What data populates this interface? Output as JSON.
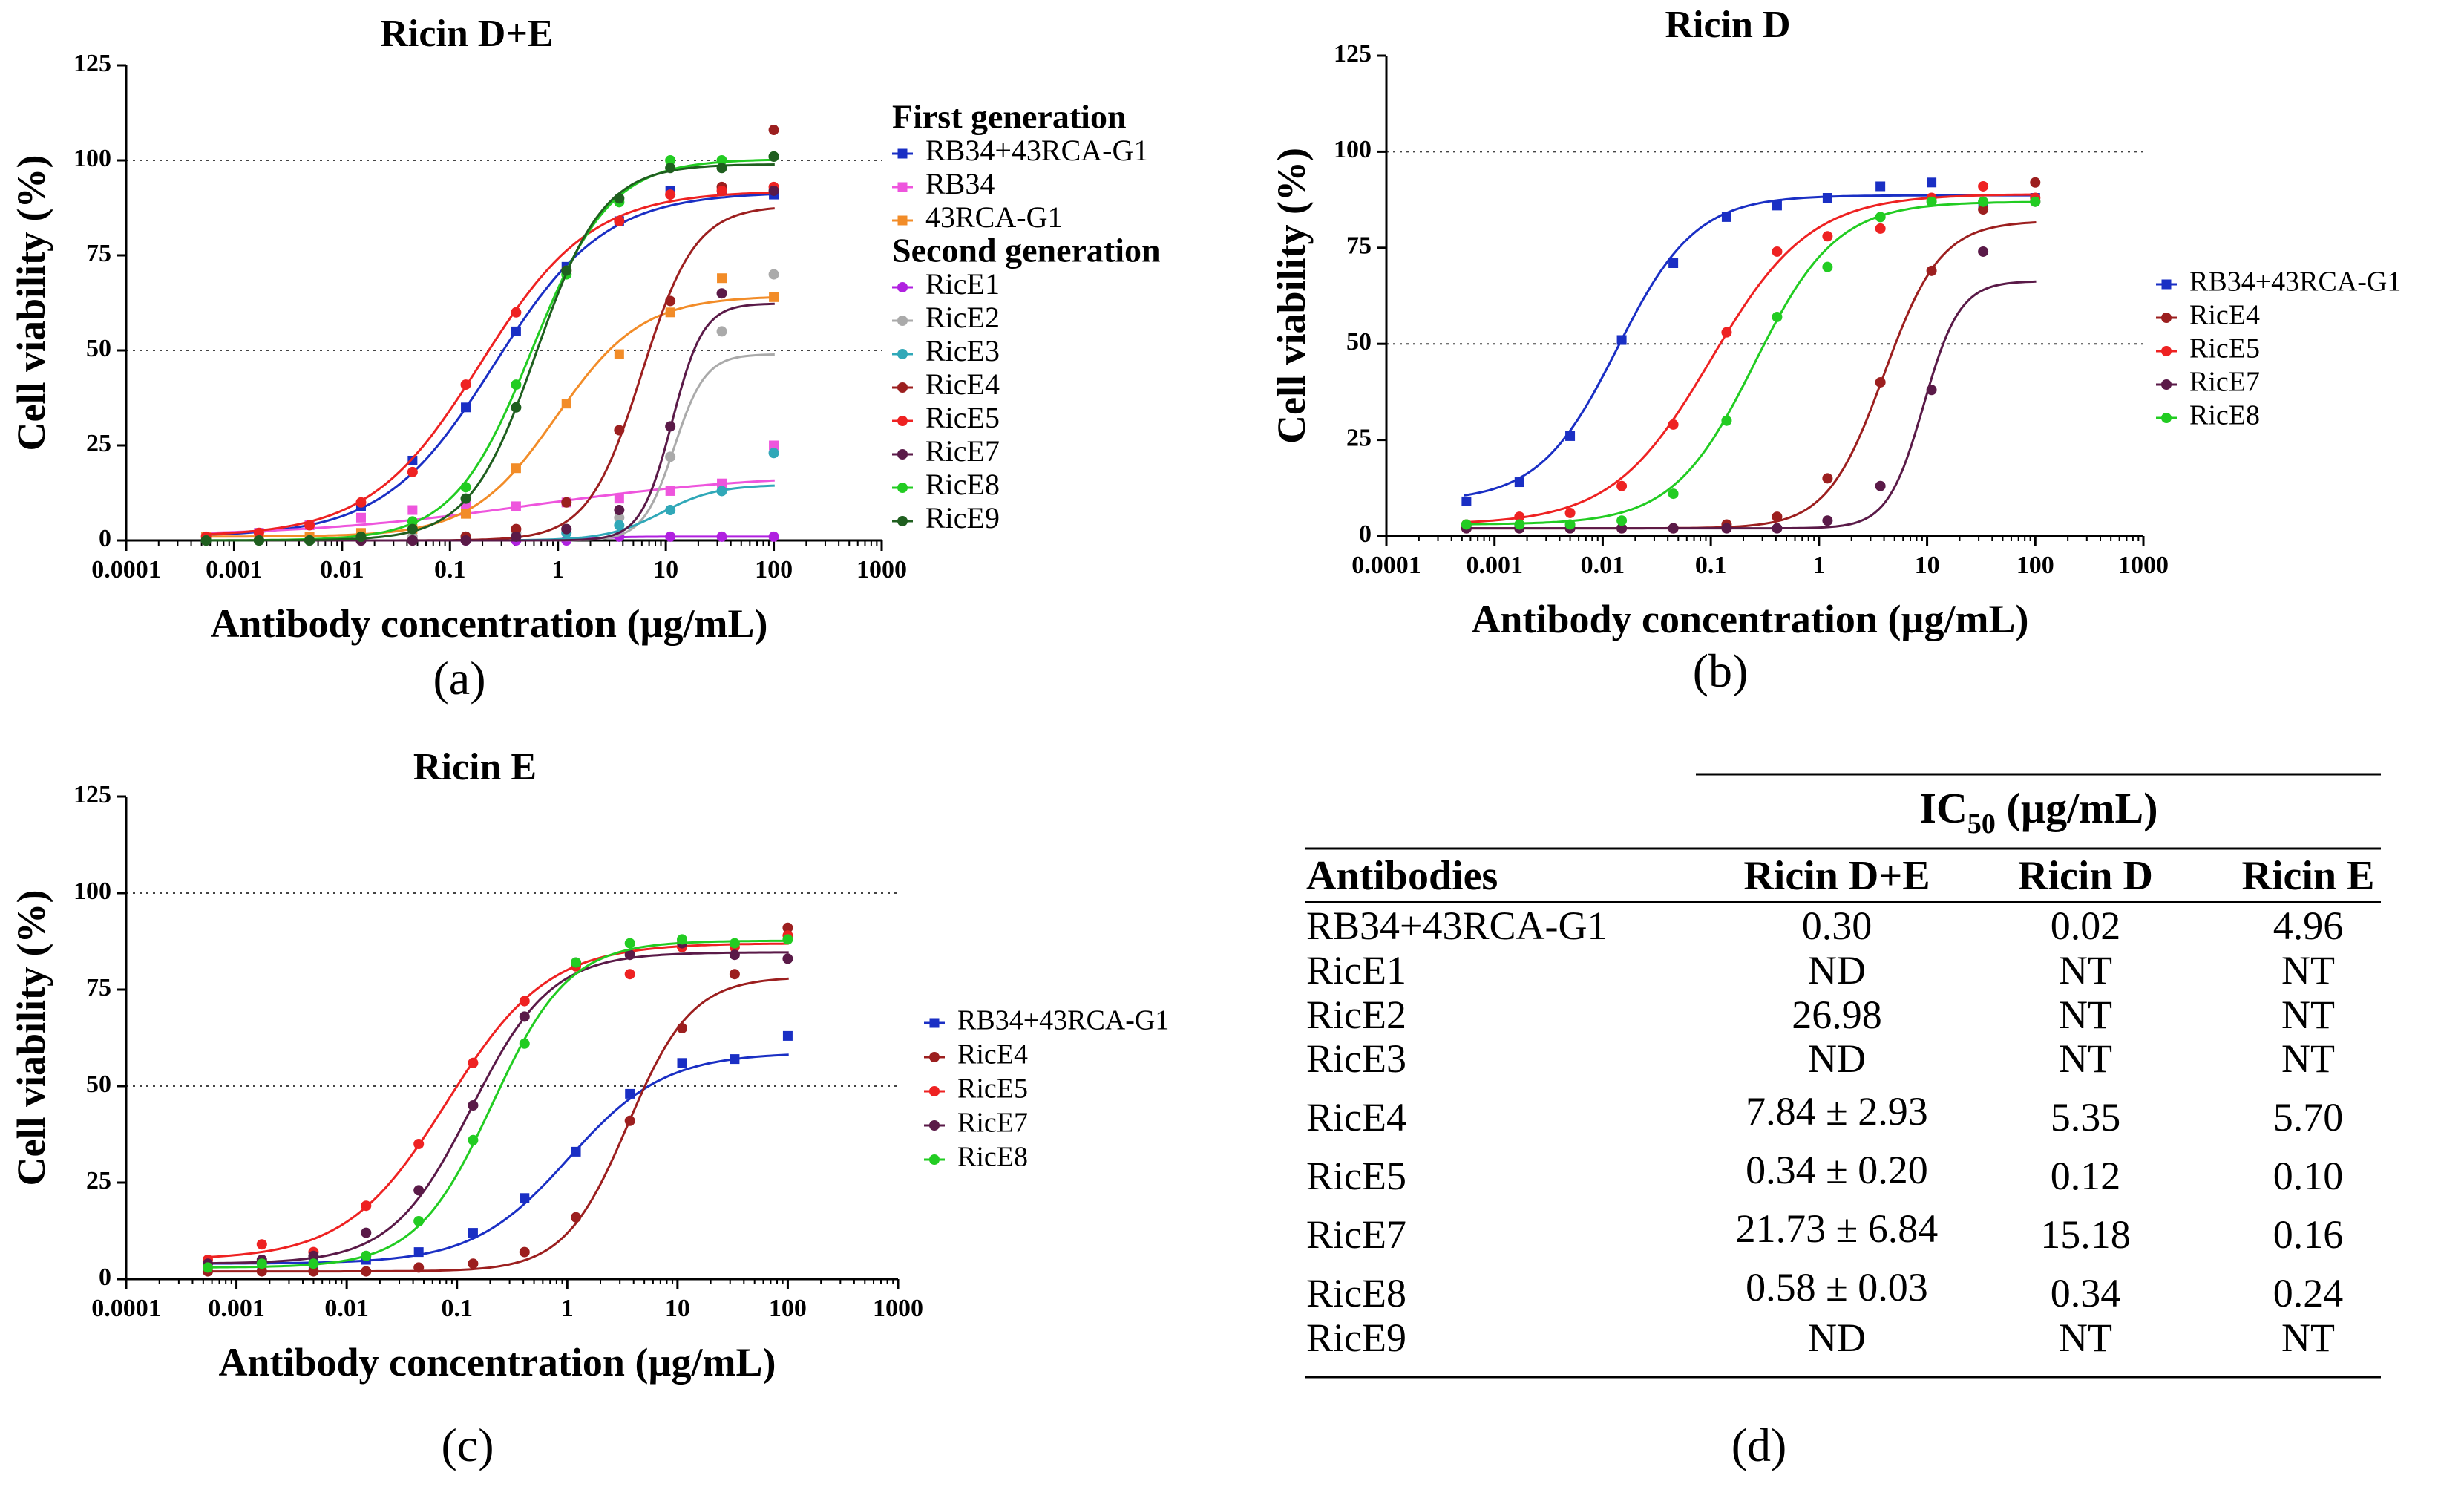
{
  "colors": {
    "RB34+43RCA-G1": "#1a2fc4",
    "RB34": "#ee55dd",
    "43RCA-G1": "#f28c28",
    "RicE1": "#b020e0",
    "RicE2": "#aaaaaa",
    "RicE3": "#30a8b8",
    "RicE4": "#9c1f1f",
    "RicE5": "#ee2222",
    "RicE7": "#5a1a48",
    "RicE8": "#22cc22",
    "RicE9": "#1f5f1f"
  },
  "chart_data": [
    {
      "type": "line",
      "panel_label": "(a)",
      "title": "Ricin D+E",
      "xlabel": "Antibody concentration (µg/mL)",
      "ylabel": "Cell viability (%)",
      "xscale": "log",
      "xlim": [
        0.0001,
        1000
      ],
      "ylim": [
        0,
        125
      ],
      "x_ticks": [
        "0.0001",
        "0.001",
        "0.01",
        "0.1",
        "1",
        "10",
        "100",
        "1000"
      ],
      "y_ticks": [
        "0",
        "25",
        "50",
        "75",
        "100",
        "125"
      ],
      "reference_lines": [
        50,
        100
      ],
      "legend_position": "right",
      "legend": [
        {
          "heading": "First generation"
        },
        {
          "name": "RB34+43RCA-G1"
        },
        {
          "name": "RB34"
        },
        {
          "name": "43RCA-G1"
        },
        {
          "heading": "Second generation"
        },
        {
          "name": "RicE1"
        },
        {
          "name": "RicE2"
        },
        {
          "name": "RicE3"
        },
        {
          "name": "RicE4"
        },
        {
          "name": "RicE5"
        },
        {
          "name": "RicE7"
        },
        {
          "name": "RicE8"
        },
        {
          "name": "RicE9"
        }
      ],
      "x": [
        0.00055,
        0.0017,
        0.005,
        0.015,
        0.045,
        0.14,
        0.41,
        1.2,
        3.7,
        11,
        33,
        100
      ],
      "series": [
        {
          "name": "RB34+43RCA-G1",
          "marker": "square",
          "values": [
            1,
            2,
            4,
            9,
            21,
            35,
            55,
            72,
            84,
            92,
            92,
            91
          ]
        },
        {
          "name": "RB34",
          "marker": "square",
          "values": [
            1,
            2,
            4,
            6,
            8,
            9,
            9,
            10,
            11,
            13,
            15,
            25
          ]
        },
        {
          "name": "43RCA-G1",
          "marker": "square",
          "values": [
            1,
            1,
            1,
            2,
            3,
            7,
            19,
            36,
            49,
            60,
            69,
            64
          ]
        },
        {
          "name": "RicE1",
          "marker": "circle",
          "values": [
            0,
            0,
            0,
            0,
            0,
            0,
            0,
            0,
            1,
            1,
            1,
            1
          ]
        },
        {
          "name": "RicE2",
          "marker": "circle",
          "values": [
            0,
            0,
            0,
            0,
            1,
            1,
            2,
            3,
            6,
            22,
            55,
            70
          ]
        },
        {
          "name": "RicE3",
          "marker": "circle",
          "values": [
            0,
            0,
            0,
            0,
            0,
            1,
            1,
            2,
            4,
            8,
            13,
            23
          ]
        },
        {
          "name": "RicE4",
          "marker": "circle",
          "values": [
            0,
            0,
            0,
            0,
            0,
            1,
            3,
            10,
            29,
            63,
            93,
            108
          ]
        },
        {
          "name": "RicE5",
          "marker": "circle",
          "values": [
            1,
            2,
            4,
            10,
            18,
            41,
            60,
            71,
            84,
            91,
            92,
            93
          ]
        },
        {
          "name": "RicE7",
          "marker": "circle",
          "values": [
            0,
            0,
            0,
            0,
            0,
            0,
            1,
            3,
            8,
            30,
            65,
            92
          ]
        },
        {
          "name": "RicE8",
          "marker": "circle",
          "values": [
            0,
            0,
            0,
            1,
            5,
            14,
            41,
            70,
            89,
            100,
            100,
            101
          ]
        },
        {
          "name": "RicE9",
          "marker": "circle",
          "values": [
            0,
            0,
            0,
            1,
            3,
            11,
            35,
            71,
            90,
            98,
            98,
            101
          ]
        }
      ]
    },
    {
      "type": "line",
      "panel_label": "(b)",
      "title": "Ricin D",
      "xlabel": "Antibody concentration (µg/mL)",
      "ylabel": "Cell viability (%)",
      "xscale": "log",
      "xlim": [
        0.0001,
        1000
      ],
      "ylim": [
        0,
        125
      ],
      "x_ticks": [
        "0.0001",
        "0.001",
        "0.01",
        "0.1",
        "1",
        "10",
        "100",
        "1000"
      ],
      "y_ticks": [
        "0",
        "25",
        "50",
        "75",
        "100",
        "125"
      ],
      "reference_lines": [
        50,
        100
      ],
      "legend_position": "right",
      "legend": [
        {
          "name": "RB34+43RCA-G1"
        },
        {
          "name": "RicE4"
        },
        {
          "name": "RicE5"
        },
        {
          "name": "RicE7"
        },
        {
          "name": "RicE8"
        }
      ],
      "x": [
        0.00055,
        0.0017,
        0.005,
        0.015,
        0.045,
        0.14,
        0.41,
        1.2,
        3.7,
        11,
        33,
        100
      ],
      "series": [
        {
          "name": "RB34+43RCA-G1",
          "marker": "square",
          "values": [
            9,
            14,
            26,
            51,
            71,
            83,
            86,
            88,
            91,
            92,
            86,
            88
          ]
        },
        {
          "name": "RicE4",
          "marker": "circle",
          "values": [
            2,
            2,
            2,
            2,
            2,
            3,
            5,
            15,
            40,
            69,
            85,
            92
          ]
        },
        {
          "name": "RicE5",
          "marker": "circle",
          "values": [
            3,
            5,
            6,
            13,
            29,
            53,
            74,
            78,
            80,
            88,
            91,
            88
          ]
        },
        {
          "name": "RicE7",
          "marker": "circle",
          "values": [
            2,
            2,
            2,
            2,
            2,
            2,
            2,
            4,
            13,
            38,
            74,
            87
          ]
        },
        {
          "name": "RicE8",
          "marker": "circle",
          "values": [
            3,
            3,
            3,
            4,
            11,
            30,
            57,
            70,
            83,
            87,
            87,
            87
          ]
        }
      ]
    },
    {
      "type": "line",
      "panel_label": "(c)",
      "title": "Ricin E",
      "xlabel": "Antibody concentration (µg/mL)",
      "ylabel": "Cell viability (%)",
      "xscale": "log",
      "xlim": [
        0.0001,
        1000
      ],
      "ylim": [
        0,
        125
      ],
      "x_ticks": [
        "0.0001",
        "0.001",
        "0.01",
        "0.1",
        "1",
        "10",
        "100",
        "1000"
      ],
      "y_ticks": [
        "0",
        "25",
        "50",
        "75",
        "100",
        "125"
      ],
      "reference_lines": [
        50,
        100
      ],
      "legend_position": "right",
      "legend": [
        {
          "name": "RB34+43RCA-G1"
        },
        {
          "name": "RicE4"
        },
        {
          "name": "RicE5"
        },
        {
          "name": "RicE7"
        },
        {
          "name": "RicE8"
        }
      ],
      "x": [
        0.00055,
        0.0017,
        0.005,
        0.015,
        0.045,
        0.14,
        0.41,
        1.2,
        3.7,
        11,
        33,
        100
      ],
      "series": [
        {
          "name": "RB34+43RCA-G1",
          "marker": "square",
          "values": [
            4,
            4,
            4,
            5,
            7,
            12,
            21,
            33,
            48,
            56,
            57,
            63
          ]
        },
        {
          "name": "RicE4",
          "marker": "circle",
          "values": [
            2,
            2,
            2,
            2,
            3,
            4,
            7,
            16,
            41,
            65,
            79,
            91
          ]
        },
        {
          "name": "RicE5",
          "marker": "circle",
          "values": [
            5,
            9,
            7,
            19,
            35,
            56,
            72,
            81,
            79,
            86,
            86,
            89
          ]
        },
        {
          "name": "RicE7",
          "marker": "circle",
          "values": [
            4,
            5,
            6,
            12,
            23,
            45,
            68,
            82,
            84,
            87,
            84,
            83
          ]
        },
        {
          "name": "RicE8",
          "marker": "circle",
          "values": [
            3,
            4,
            4,
            6,
            15,
            36,
            61,
            82,
            87,
            88,
            87,
            88
          ]
        }
      ]
    }
  ],
  "table": {
    "panel_label": "(d)",
    "group_header": {
      "prefix": "IC",
      "subscript": "50",
      "suffix": " (µg/mL)"
    },
    "columns": [
      "Antibodies",
      "Ricin D+E",
      "Ricin D",
      "Ricin E"
    ],
    "rows": [
      [
        "RB34+43RCA-G1",
        "0.30",
        "0.02",
        "4.96"
      ],
      [
        "RicE1",
        "ND",
        "NT",
        "NT"
      ],
      [
        "RicE2",
        "26.98",
        "NT",
        "NT"
      ],
      [
        "RicE3",
        "ND",
        "NT",
        "NT"
      ],
      [
        "RicE4",
        "7.84 ± 2.93",
        "5.35",
        "5.70"
      ],
      [
        "RicE5",
        "0.34 ± 0.20",
        "0.12",
        "0.10"
      ],
      [
        "RicE7",
        "21.73 ± 6.84",
        "15.18",
        "0.16"
      ],
      [
        "RicE8",
        "0.58 ± 0.03",
        "0.34",
        "0.24"
      ],
      [
        "RicE9",
        "ND",
        "NT",
        "NT"
      ]
    ]
  }
}
